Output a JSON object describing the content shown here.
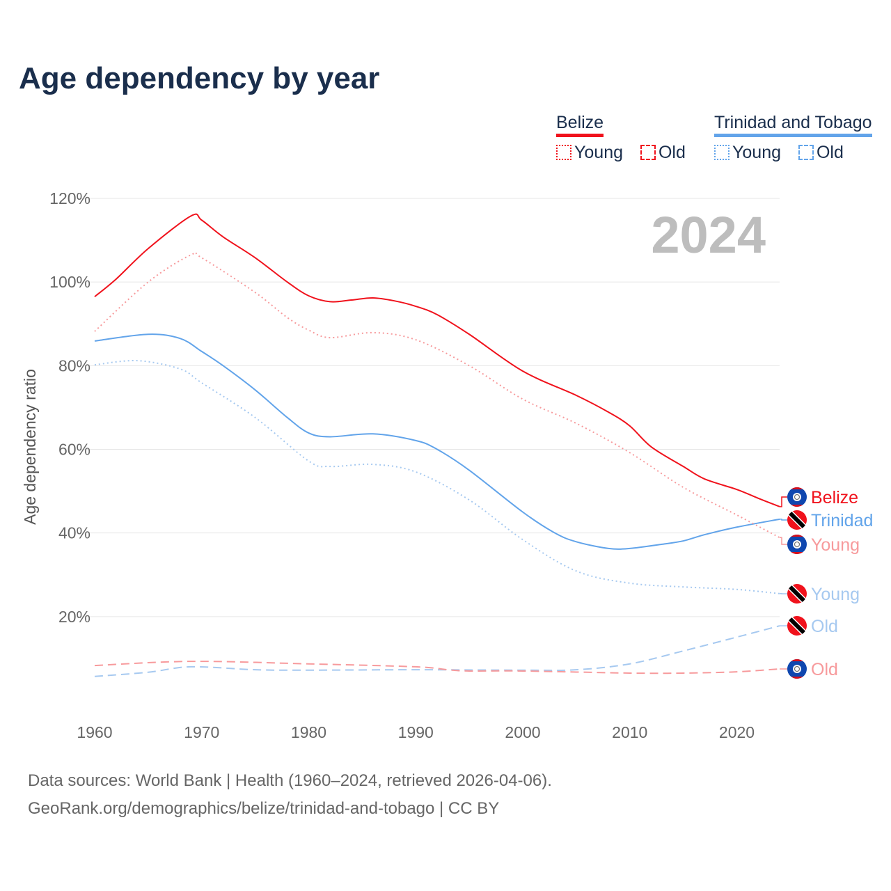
{
  "title": "Age dependency by year",
  "year_badge": "2024",
  "legend": {
    "groups": [
      {
        "country": "Belize",
        "color": "#f0121c",
        "items": [
          "Young",
          "Old"
        ]
      },
      {
        "country": "Trinidad and Tobago",
        "color": "#62a4ea",
        "items": [
          "Young",
          "Old"
        ]
      }
    ]
  },
  "footer": {
    "line1": "Data sources: World Bank | Health (1960–2024, retrieved 2026-04-06).",
    "line2": "GeoRank.org/demographics/belize/trinidad-and-tobago | CC BY"
  },
  "chart_data": {
    "type": "line",
    "title": "Age dependency by year",
    "xlabel": "",
    "ylabel": "Age dependency ratio",
    "xlim": [
      1960,
      2024
    ],
    "ylim": [
      0,
      120
    ],
    "yticks": [
      20,
      40,
      60,
      80,
      100,
      120
    ],
    "ytick_labels": [
      "20%",
      "40%",
      "60%",
      "80%",
      "100%",
      "120%"
    ],
    "xticks": [
      1960,
      1970,
      1980,
      1990,
      2000,
      2010,
      2020
    ],
    "xtick_labels": [
      "1960",
      "1970",
      "1980",
      "1990",
      "2000",
      "2010",
      "2020"
    ],
    "grid": true,
    "series": [
      {
        "name": "Belize",
        "end_label": "Belize",
        "country": "belize",
        "color": "#f0121c",
        "style": "solid",
        "x": [
          1960,
          1962,
          1965,
          1969,
          1970,
          1972,
          1975,
          1978,
          1980,
          1982,
          1984,
          1986,
          1988,
          1990,
          1992,
          1995,
          2000,
          2005,
          2008,
          2010,
          2012,
          2015,
          2017,
          2020,
          2022,
          2024
        ],
        "y": [
          96.5,
          100.7,
          108,
          115.8,
          114.8,
          110.8,
          105.8,
          100,
          96.7,
          95.3,
          95.7,
          96.2,
          95.5,
          94.2,
          92.2,
          87.5,
          78.7,
          72.9,
          68.9,
          65.6,
          60.6,
          55.9,
          52.9,
          50.4,
          48.3,
          46.3
        ]
      },
      {
        "name": "Trinidad and Tobago",
        "end_label": "Trinidad",
        "country": "tt",
        "color": "#62a4ea",
        "style": "solid",
        "x": [
          1960,
          1965,
          1968,
          1970,
          1972,
          1975,
          1978,
          1980,
          1982,
          1986,
          1990,
          1992,
          1995,
          2000,
          2003,
          2005,
          2008,
          2010,
          2013,
          2015,
          2017,
          2020,
          2024
        ],
        "y": [
          85.9,
          87.5,
          86.5,
          83.4,
          80,
          74.2,
          67.6,
          63.9,
          63,
          63.7,
          62.1,
          60,
          55,
          45,
          40,
          37.9,
          36.3,
          36.3,
          37.3,
          38.1,
          39.6,
          41.4,
          43.3
        ]
      },
      {
        "name": "Belize Young",
        "end_label": "Young",
        "country": "belize",
        "color": "#f79a9c",
        "style": "dotted",
        "x": [
          1960,
          1965,
          1969,
          1970,
          1975,
          1978,
          1980,
          1982,
          1986,
          1990,
          1995,
          2000,
          2005,
          2010,
          2015,
          2020,
          2024
        ],
        "y": [
          88.2,
          100,
          106.5,
          105.8,
          97.5,
          91.5,
          88.5,
          86.7,
          87.9,
          86.2,
          80,
          72,
          66.2,
          59.2,
          50.9,
          44.3,
          38.9
        ]
      },
      {
        "name": "Trinidad and Tobago Young",
        "end_label": "Young",
        "country": "tt",
        "color": "#a6c9f0",
        "style": "dotted",
        "x": [
          1960,
          1964,
          1968,
          1970,
          1975,
          1980,
          1982,
          1986,
          1990,
          1995,
          2000,
          2005,
          2010,
          2015,
          2020,
          2024
        ],
        "y": [
          80.2,
          81.2,
          79.2,
          75.9,
          67.6,
          57.2,
          55.9,
          56.4,
          54.6,
          47.9,
          38.4,
          30.9,
          28,
          27.1,
          26.5,
          25.5
        ]
      },
      {
        "name": "Trinidad and Tobago Old",
        "end_label": "Old",
        "country": "tt",
        "color": "#a6c9f0",
        "style": "dashed",
        "x": [
          1960,
          1965,
          1969,
          1975,
          1980,
          1990,
          2000,
          2005,
          2010,
          2015,
          2020,
          2024
        ],
        "y": [
          5.7,
          6.7,
          8,
          7.3,
          7.2,
          7.3,
          7.2,
          7.3,
          8.7,
          11.8,
          15.1,
          17.8
        ]
      },
      {
        "name": "Belize Old",
        "end_label": "Old",
        "country": "belize",
        "color": "#f79a9c",
        "style": "dashed",
        "x": [
          1960,
          1969,
          1980,
          1990,
          1993,
          1995,
          2000,
          2010,
          2015,
          2020,
          2024
        ],
        "y": [
          8.3,
          9.3,
          8.7,
          8,
          7.3,
          7,
          7,
          6.5,
          6.5,
          6.8,
          7.5
        ]
      }
    ]
  }
}
